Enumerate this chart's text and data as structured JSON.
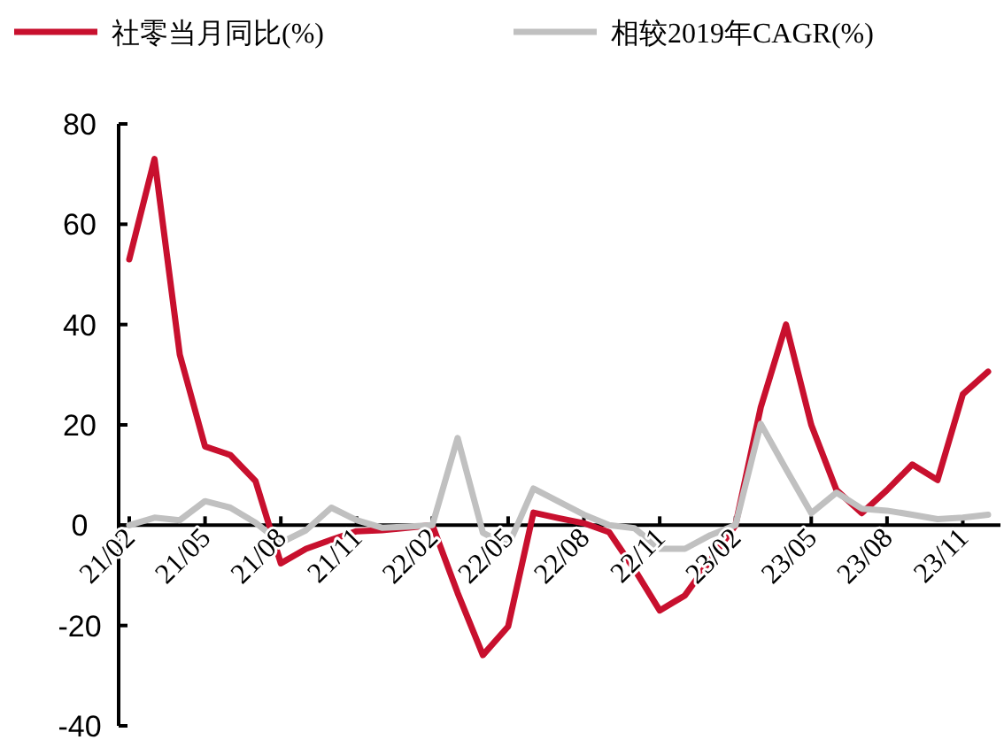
{
  "chart_data": {
    "type": "line",
    "categories": [
      "21/02",
      null,
      null,
      "21/05",
      null,
      null,
      "21/08",
      null,
      null,
      "21/11",
      null,
      null,
      "22/02",
      null,
      null,
      "22/05",
      null,
      null,
      "22/08",
      null,
      null,
      "22/11",
      null,
      null,
      "23/02",
      null,
      null,
      "23/05",
      null,
      null,
      "23/08",
      null,
      null,
      "23/11",
      null
    ],
    "series": [
      {
        "name": "社零当月同比(%)",
        "color": "#c8102e",
        "values": [
          53,
          73,
          34,
          15.7,
          14,
          8.8,
          -7.6,
          -4.7,
          -2.9,
          -1.2,
          -1,
          -0.5,
          0,
          -13.5,
          -25.9,
          -20.2,
          2.5,
          1.4,
          0.4,
          -1.4,
          -8.8,
          -17,
          -14,
          -7,
          0,
          23.5,
          40,
          20,
          7,
          2.4,
          7,
          12.1,
          9,
          26.1,
          30.6
        ]
      },
      {
        "name": "相较2019年CAGR(%)",
        "color": "#c0c0c0",
        "values": [
          0,
          1.5,
          1,
          4.8,
          3.5,
          0.5,
          -3.5,
          -1,
          3.5,
          1,
          -0.5,
          -0.3,
          0,
          17.4,
          -1.5,
          -4.1,
          7.3,
          4.7,
          2.1,
          0,
          -0.6,
          -4.7,
          -4.7,
          -2,
          0,
          20.2,
          11.2,
          2.4,
          6.5,
          3.3,
          2.9,
          2.1,
          1.2,
          1.5,
          2.1
        ]
      }
    ],
    "ylim": [
      -40,
      80
    ],
    "yticks": [
      -40,
      -20,
      0,
      20,
      40,
      60,
      80
    ],
    "legend": "top",
    "marker": "none",
    "line_style": "solid"
  }
}
